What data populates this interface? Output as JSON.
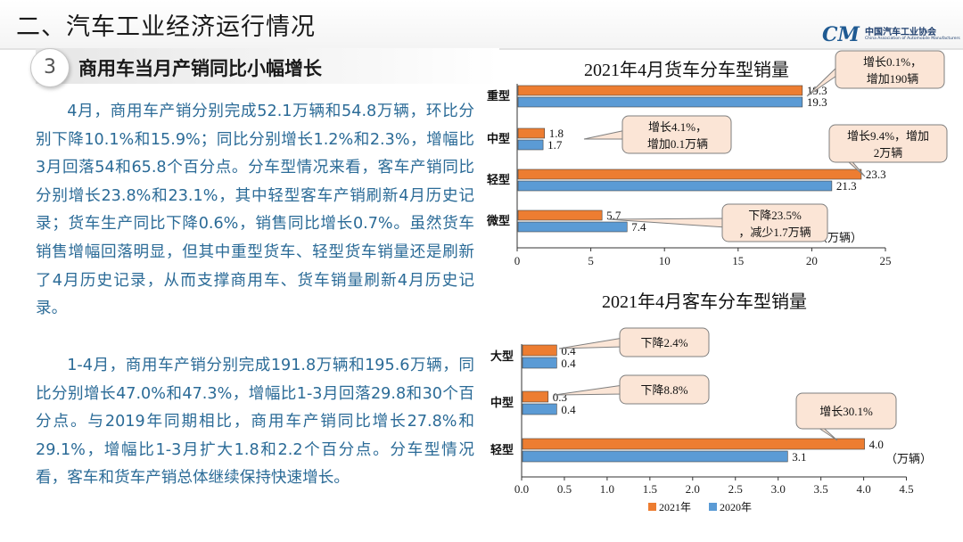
{
  "header": {
    "title": "二、汽车工业经济运行情况",
    "logo_mark": "CM",
    "logo_cn": "中国汽车工业协会",
    "logo_en": "China Association of Automobile Manufacturers"
  },
  "section": {
    "number": "3",
    "title": "商用车当月产销同比小幅增长"
  },
  "paragraphs": [
    "4月，商用车产销分别完成52.1万辆和54.8万辆，环比分别下降10.1%和15.9%；同比分别增长1.2%和2.3%，增幅比3月回落54和65.8个百分点。分车型情况来看，客车产销同比分别增长23.8%和23.1%，其中轻型客车产销刷新4月历史记录；货车生产同比下降0.6%，销售同比增长0.7%。虽然货车销售增幅回落明显，但其中重型货车、轻型货车销量还是刷新了4月历史记录，从而支撑商用车、货车销量刷新4月历史记录。",
    "1-4月，商用车产销分别完成191.8万辆和195.6万辆，同比分别增长47.0%和47.3%，增幅比1-3月回落29.8和30个百分点。与2019年同期相比，商用车产销同比增长27.8%和29.1%，增幅比1-3月扩大1.8和2.2个百分点。分车型情况看，客车和货车产销总体继续保持快速增长。"
  ],
  "colors": {
    "series_2021": "#ed7d31",
    "series_2020": "#5b9bd5",
    "callout_fill": "#fbe5d6",
    "callout_border": "#7f7f7f",
    "text_blue": "#2b6b97"
  },
  "chart_data": [
    {
      "type": "bar",
      "orientation": "horizontal",
      "title": "2021年4月货车分车型销量",
      "categories": [
        "重型",
        "中型",
        "轻型",
        "微型"
      ],
      "series": [
        {
          "name": "2021年",
          "values": [
            19.3,
            1.8,
            23.3,
            5.7
          ],
          "labels": [
            "19.3",
            "1.8",
            "23.3",
            "5.7"
          ]
        },
        {
          "name": "2020年",
          "values": [
            19.3,
            1.7,
            21.3,
            7.4
          ],
          "labels": [
            "19.3",
            "1.7",
            "21.3",
            "7.4"
          ]
        }
      ],
      "unit": "（万辆）",
      "xlim": [
        0,
        25
      ],
      "ticks": [
        0,
        5,
        10,
        15,
        20,
        25
      ],
      "tick_labels": [
        "0",
        "5",
        "10",
        "15",
        "20",
        "25"
      ],
      "annotations": [
        "增长0.1%，增加190辆",
        "增长4.1%，增加0.1万辆",
        "增长9.4%，增加2万辆",
        "下降23.5%，减少1.7万辆"
      ]
    },
    {
      "type": "bar",
      "orientation": "horizontal",
      "title": "2021年4月客车分车型销量",
      "categories": [
        "大型",
        "中型",
        "轻型"
      ],
      "series": [
        {
          "name": "2021年",
          "values": [
            0.4,
            0.3,
            4.0
          ],
          "labels": [
            "0.4",
            "0.3",
            "4.0"
          ]
        },
        {
          "name": "2020年",
          "values": [
            0.4,
            0.4,
            3.1
          ],
          "labels": [
            "0.4",
            "0.4",
            "3.1"
          ]
        }
      ],
      "unit": "（万辆）",
      "xlim": [
        0,
        4.5
      ],
      "ticks": [
        0,
        0.5,
        1.0,
        1.5,
        2.0,
        2.5,
        3.0,
        3.5,
        4.0,
        4.5
      ],
      "tick_labels": [
        "0.0",
        "0.5",
        "1.0",
        "1.5",
        "2.0",
        "2.5",
        "3.0",
        "3.5",
        "4.0",
        "4.5"
      ],
      "annotations": [
        "下降2.4%",
        "下降8.8%",
        "增长30.1%"
      ],
      "legend": [
        "2021年",
        "2020年"
      ]
    }
  ]
}
